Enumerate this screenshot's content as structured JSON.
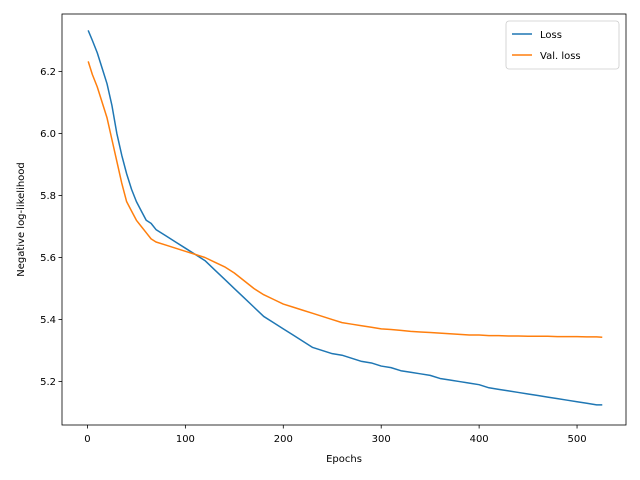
{
  "chart_data": {
    "type": "line",
    "title": "",
    "xlabel": "Epochs",
    "ylabel": "Negative log-likelihood",
    "xlim": [
      -26,
      550
    ],
    "ylim": [
      5.06,
      6.385
    ],
    "xticks": [
      0,
      100,
      200,
      300,
      400,
      500
    ],
    "yticks": [
      5.2,
      5.4,
      5.6,
      5.8,
      6.0,
      6.2
    ],
    "ytick_labels": [
      "5.2",
      "5.4",
      "5.6",
      "5.8",
      "6.0",
      "6.2"
    ],
    "grid": false,
    "legend_position": "top-right",
    "series": [
      {
        "name": "Loss",
        "color": "#1f77b4",
        "x": [
          1,
          5,
          10,
          15,
          20,
          25,
          30,
          35,
          40,
          45,
          50,
          55,
          60,
          65,
          70,
          80,
          90,
          100,
          110,
          120,
          130,
          140,
          150,
          160,
          170,
          180,
          190,
          200,
          210,
          220,
          230,
          240,
          250,
          260,
          270,
          280,
          290,
          300,
          310,
          320,
          330,
          340,
          350,
          360,
          370,
          380,
          390,
          400,
          410,
          420,
          430,
          440,
          450,
          460,
          470,
          480,
          490,
          500,
          510,
          520,
          525
        ],
        "y": [
          6.33,
          6.3,
          6.26,
          6.21,
          6.16,
          6.09,
          6.0,
          5.93,
          5.87,
          5.82,
          5.78,
          5.75,
          5.72,
          5.71,
          5.69,
          5.67,
          5.65,
          5.63,
          5.61,
          5.59,
          5.56,
          5.53,
          5.5,
          5.47,
          5.44,
          5.41,
          5.39,
          5.37,
          5.35,
          5.33,
          5.31,
          5.3,
          5.29,
          5.285,
          5.275,
          5.265,
          5.26,
          5.25,
          5.245,
          5.235,
          5.23,
          5.225,
          5.22,
          5.21,
          5.205,
          5.2,
          5.195,
          5.19,
          5.18,
          5.175,
          5.17,
          5.165,
          5.16,
          5.155,
          5.15,
          5.145,
          5.14,
          5.135,
          5.13,
          5.125,
          5.125
        ]
      },
      {
        "name": "Val. loss",
        "color": "#ff7f0e",
        "x": [
          1,
          5,
          10,
          15,
          20,
          25,
          30,
          35,
          40,
          45,
          50,
          55,
          60,
          65,
          70,
          80,
          90,
          100,
          110,
          120,
          130,
          140,
          150,
          160,
          170,
          180,
          190,
          200,
          210,
          220,
          230,
          240,
          250,
          260,
          270,
          280,
          290,
          300,
          310,
          320,
          330,
          340,
          350,
          360,
          370,
          380,
          390,
          400,
          410,
          420,
          430,
          440,
          450,
          460,
          470,
          480,
          490,
          500,
          510,
          520,
          525
        ],
        "y": [
          6.23,
          6.19,
          6.15,
          6.1,
          6.05,
          5.98,
          5.91,
          5.84,
          5.78,
          5.75,
          5.72,
          5.7,
          5.68,
          5.66,
          5.65,
          5.64,
          5.63,
          5.62,
          5.61,
          5.6,
          5.585,
          5.57,
          5.55,
          5.525,
          5.5,
          5.48,
          5.465,
          5.45,
          5.44,
          5.43,
          5.42,
          5.41,
          5.4,
          5.39,
          5.385,
          5.38,
          5.375,
          5.37,
          5.368,
          5.365,
          5.362,
          5.36,
          5.358,
          5.356,
          5.354,
          5.352,
          5.35,
          5.35,
          5.348,
          5.348,
          5.347,
          5.347,
          5.346,
          5.346,
          5.346,
          5.345,
          5.345,
          5.345,
          5.344,
          5.344,
          5.343
        ]
      }
    ]
  }
}
